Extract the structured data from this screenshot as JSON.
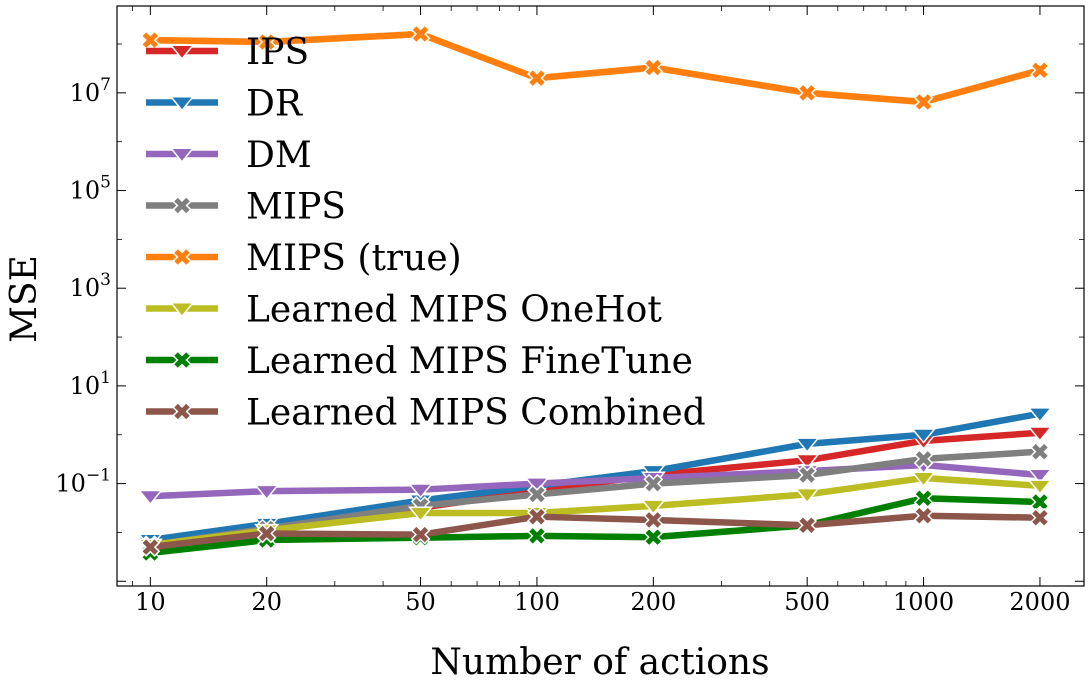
{
  "chart_data": {
    "type": "line",
    "xscale": "log",
    "yscale": "log",
    "x": [
      10,
      20,
      50,
      100,
      200,
      500,
      1000,
      2000
    ],
    "xticks": [
      "10",
      "20",
      "50",
      "100",
      "200",
      "500",
      "1000",
      "2000"
    ],
    "yticks": [
      {
        "base": "10",
        "exp": "−1"
      },
      {
        "base": "10",
        "exp": "1"
      },
      {
        "base": "10",
        "exp": "3"
      },
      {
        "base": "10",
        "exp": "5"
      },
      {
        "base": "10",
        "exp": "7"
      }
    ],
    "xlabel": "Number of actions",
    "ylabel": "MSE",
    "xlim": [
      8.2,
      2600
    ],
    "ylim": [
      0.0008,
      600000000
    ],
    "legend_position": "top-left",
    "series": [
      {
        "name": "IPS",
        "color": "#d62728",
        "marker": "triangle-down",
        "values": [
          0.006,
          0.013,
          0.032,
          0.07,
          0.15,
          0.3,
          0.75,
          1.1
        ]
      },
      {
        "name": "DR",
        "color": "#1f77b4",
        "marker": "triangle-down",
        "values": [
          0.007,
          0.015,
          0.045,
          0.09,
          0.18,
          0.65,
          1.0,
          2.7
        ]
      },
      {
        "name": "DM",
        "color": "#9467bd",
        "marker": "triangle-down",
        "values": [
          0.055,
          0.07,
          0.075,
          0.1,
          0.13,
          0.18,
          0.24,
          0.15
        ]
      },
      {
        "name": "MIPS",
        "color": "#7f7f7f",
        "marker": "x-filled",
        "values": [
          0.0055,
          0.012,
          0.035,
          0.06,
          0.1,
          0.15,
          0.32,
          0.45
        ]
      },
      {
        "name": "MIPS (true)",
        "color": "#ff7f0e",
        "marker": "x-filled",
        "band": true,
        "values": [
          120000000,
          110000000,
          160000000,
          20000000,
          33000000,
          10000000,
          6500000,
          29000000
        ]
      },
      {
        "name": "Learned MIPS OneHot",
        "color": "#bcbd22",
        "marker": "triangle-down",
        "values": [
          0.0055,
          0.011,
          0.025,
          0.025,
          0.035,
          0.06,
          0.13,
          0.09
        ]
      },
      {
        "name": "Learned MIPS FineTune",
        "color": "#008000",
        "marker": "x-filled",
        "values": [
          0.0038,
          0.007,
          0.0078,
          0.0085,
          0.008,
          0.014,
          0.05,
          0.042
        ]
      },
      {
        "name": "Learned MIPS Combined",
        "color": "#8c564b",
        "marker": "x-filled",
        "values": [
          0.005,
          0.0095,
          0.009,
          0.021,
          0.018,
          0.014,
          0.022,
          0.02
        ]
      }
    ]
  }
}
